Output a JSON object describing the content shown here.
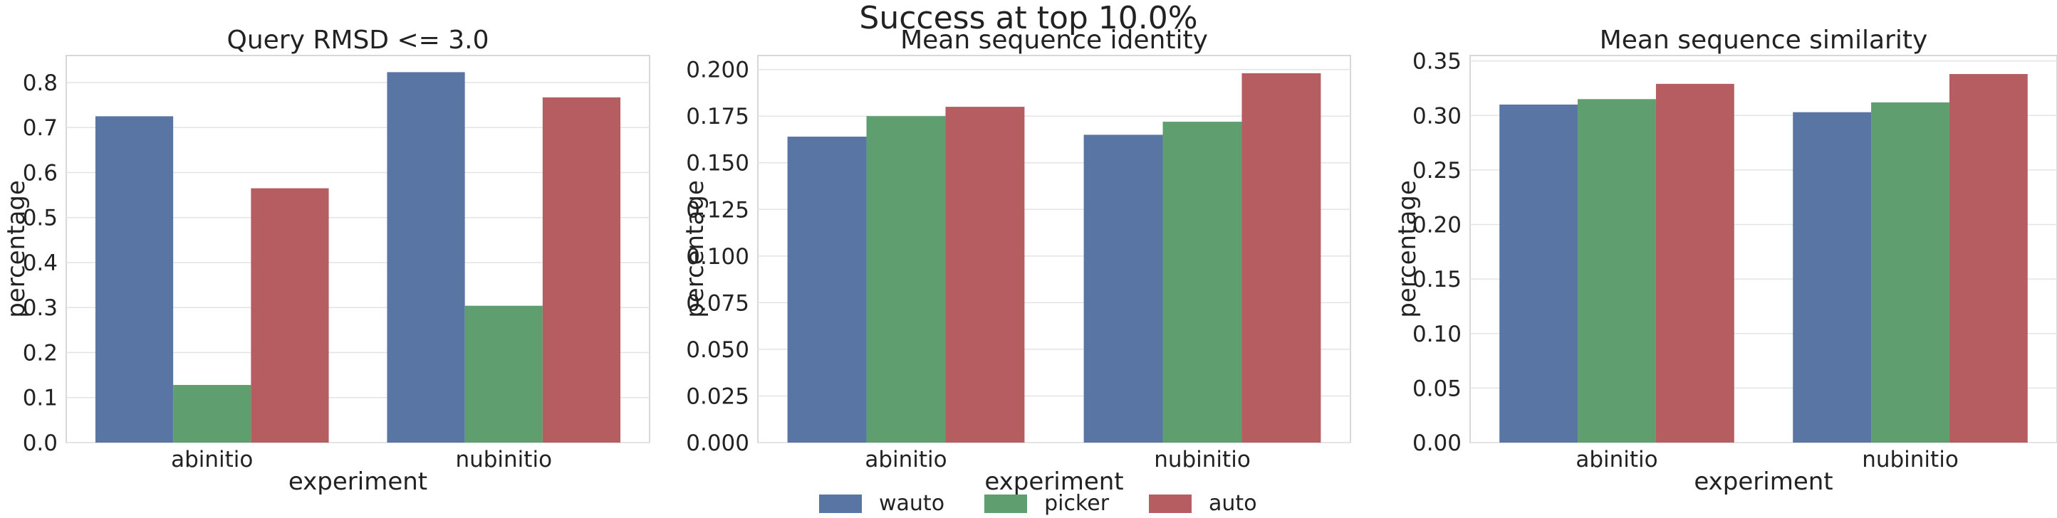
{
  "suptitle": "Success at top 10.0%",
  "legend": {
    "title": "experiment",
    "items": [
      {
        "label": "wauto",
        "color": "#5975a4"
      },
      {
        "label": "picker",
        "color": "#5f9e6e"
      },
      {
        "label": "auto",
        "color": "#b55d60"
      }
    ]
  },
  "chart_data": [
    {
      "type": "bar",
      "title": "Query RMSD <= 3.0",
      "xlabel": "experiment",
      "ylabel": "percentage",
      "categories": [
        "abinitio",
        "nubinitio"
      ],
      "ylim": [
        0,
        0.86
      ],
      "yticks": [
        "0.0",
        "0.1",
        "0.2",
        "0.3",
        "0.4",
        "0.5",
        "0.6",
        "0.7",
        "0.8"
      ],
      "grid": true,
      "series": [
        {
          "name": "wauto",
          "values": [
            0.725,
            0.823
          ]
        },
        {
          "name": "picker",
          "values": [
            0.128,
            0.304
          ]
        },
        {
          "name": "auto",
          "values": [
            0.565,
            0.767
          ]
        }
      ]
    },
    {
      "type": "bar",
      "title": "Mean sequence identity",
      "xlabel": "experiment",
      "ylabel": "percentage",
      "categories": [
        "abinitio",
        "nubinitio"
      ],
      "ylim": [
        0,
        0.2075
      ],
      "yticks": [
        "0.000",
        "0.025",
        "0.050",
        "0.075",
        "0.100",
        "0.125",
        "0.150",
        "0.175",
        "0.200"
      ],
      "grid": true,
      "series": [
        {
          "name": "wauto",
          "values": [
            0.164,
            0.165
          ]
        },
        {
          "name": "picker",
          "values": [
            0.175,
            0.172
          ]
        },
        {
          "name": "auto",
          "values": [
            0.18,
            0.198
          ]
        }
      ]
    },
    {
      "type": "bar",
      "title": "Mean sequence similarity",
      "xlabel": "experiment",
      "ylabel": "percentage",
      "categories": [
        "abinitio",
        "nubinitio"
      ],
      "ylim": [
        0,
        0.355
      ],
      "yticks": [
        "0.00",
        "0.05",
        "0.10",
        "0.15",
        "0.20",
        "0.25",
        "0.30",
        "0.35"
      ],
      "grid": true,
      "series": [
        {
          "name": "wauto",
          "values": [
            0.31,
            0.303
          ]
        },
        {
          "name": "picker",
          "values": [
            0.315,
            0.312
          ]
        },
        {
          "name": "auto",
          "values": [
            0.329,
            0.338
          ]
        }
      ]
    }
  ]
}
